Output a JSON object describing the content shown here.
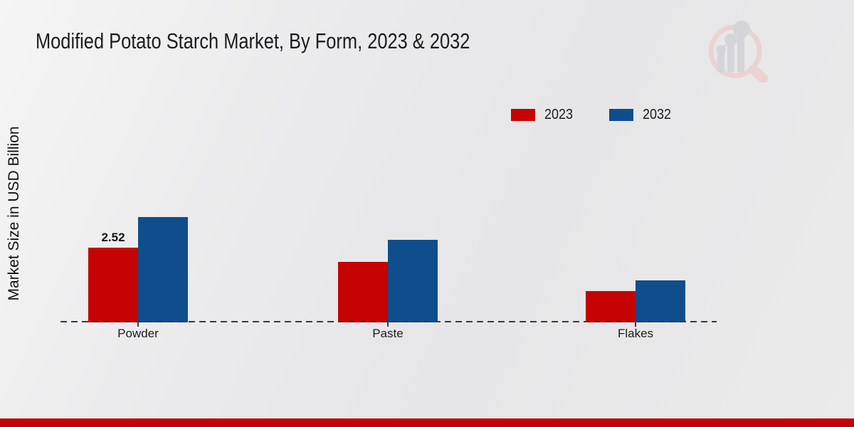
{
  "page": {
    "title": "Modified Potato Starch Market, By Form, 2023 & 2032"
  },
  "branding": {
    "logo_icon": "magnifier-bar-chart-logo",
    "logo_ring_color": "#ecd2d2",
    "logo_bar_color": "#d5d5d9",
    "footer_bar_color": "#c00505"
  },
  "chart_data": {
    "type": "bar",
    "title": "Modified Potato Starch Market, By Form, 2023 & 2032",
    "xlabel": "",
    "ylabel": "Market Size in USD Billion",
    "categories": [
      "Powder",
      "Paste",
      "Flakes"
    ],
    "series": [
      {
        "name": "2023",
        "color": "#c50303",
        "values": [
          2.52,
          2.03,
          1.05
        ]
      },
      {
        "name": "2032",
        "color": "#0f4d8d",
        "values": [
          3.56,
          2.79,
          1.41
        ]
      }
    ],
    "value_labels": [
      [
        "2.52",
        "",
        ""
      ],
      [
        "",
        "",
        ""
      ]
    ],
    "ylim": [
      0,
      4
    ],
    "grid": false,
    "y_axis_ticks_visible": false,
    "legend_position": "top-right",
    "baseline_style": "dashed"
  }
}
